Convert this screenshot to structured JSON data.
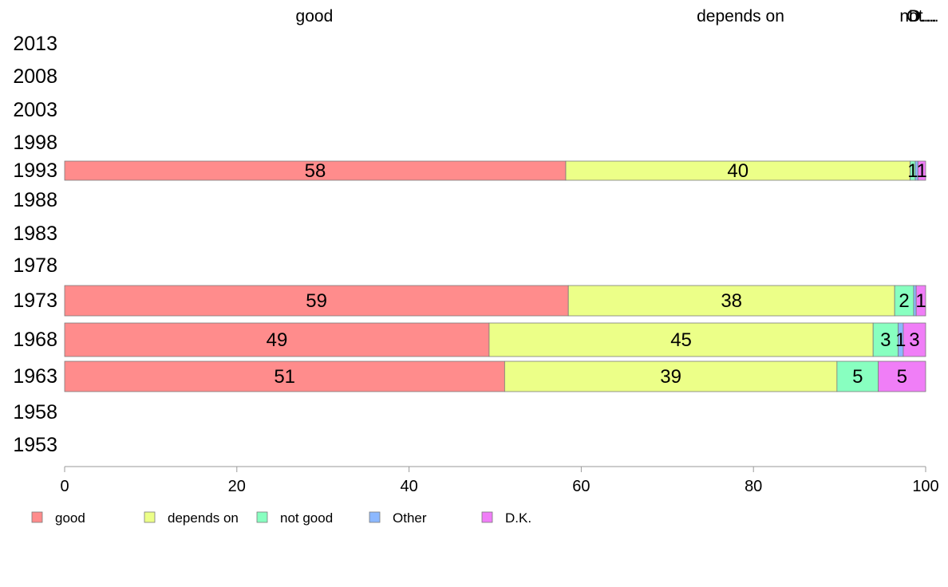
{
  "chart_data": {
    "type": "bar",
    "orientation": "horizontal",
    "stacked": true,
    "title": "",
    "xlabel": "",
    "ylabel": "",
    "xlim": [
      0,
      100
    ],
    "x_ticks": [
      "0",
      "20",
      "40",
      "60",
      "80",
      "100"
    ],
    "categories": [
      "2013",
      "2008",
      "2003",
      "1998",
      "1993",
      "1988",
      "1983",
      "1978",
      "1973",
      "1968",
      "1963",
      "1958",
      "1953"
    ],
    "top_labels": [
      {
        "text": "good",
        "at": 29
      },
      {
        "text": "depends on",
        "at": 78.5
      },
      {
        "text": "not…",
        "at": 99.3
      },
      {
        "text": "O…",
        "at": 99.5
      },
      {
        "text": "D…",
        "at": 99.7
      }
    ],
    "series": [
      {
        "name": "good",
        "color": "#ff8c8c",
        "values": [
          null,
          null,
          null,
          null,
          58.2,
          null,
          null,
          null,
          58.5,
          49.3,
          51.1,
          null,
          null
        ],
        "labels": [
          "",
          "",
          "",
          "",
          "58",
          "",
          "",
          "",
          "59",
          "49",
          "51",
          "",
          ""
        ]
      },
      {
        "name": "depends on",
        "color": "#ecff88",
        "values": [
          null,
          null,
          null,
          null,
          40.0,
          null,
          null,
          null,
          37.9,
          44.6,
          38.6,
          null,
          null
        ],
        "labels": [
          "",
          "",
          "",
          "",
          "40",
          "",
          "",
          "",
          "38",
          "45",
          "39",
          "",
          ""
        ]
      },
      {
        "name": "not good",
        "color": "#88ffc0",
        "values": [
          null,
          null,
          null,
          null,
          0.6,
          null,
          null,
          null,
          2.2,
          2.9,
          4.8,
          null,
          null
        ],
        "labels": [
          "",
          "",
          "",
          "",
          "1",
          "",
          "",
          "",
          "2",
          "3",
          "5",
          "",
          ""
        ]
      },
      {
        "name": "Other",
        "color": "#8cb8ff",
        "values": [
          null,
          null,
          null,
          null,
          0.3,
          null,
          null,
          null,
          0.3,
          0.6,
          0.0,
          null,
          null
        ],
        "labels": [
          "",
          "",
          "",
          "",
          "",
          "",
          "",
          "",
          "",
          "1",
          "",
          "",
          ""
        ]
      },
      {
        "name": "D.K.",
        "color": "#f07ef7",
        "values": [
          null,
          null,
          null,
          null,
          0.9,
          null,
          null,
          null,
          1.1,
          2.6,
          5.5,
          null,
          null
        ],
        "labels": [
          "",
          "",
          "",
          "",
          "1",
          "",
          "",
          "",
          "1",
          "3",
          "5",
          "",
          ""
        ]
      }
    ],
    "legend": [
      "good",
      "depends on",
      "not good",
      "Other",
      "D.K."
    ],
    "legend_position": "bottom-left",
    "grid": false
  }
}
